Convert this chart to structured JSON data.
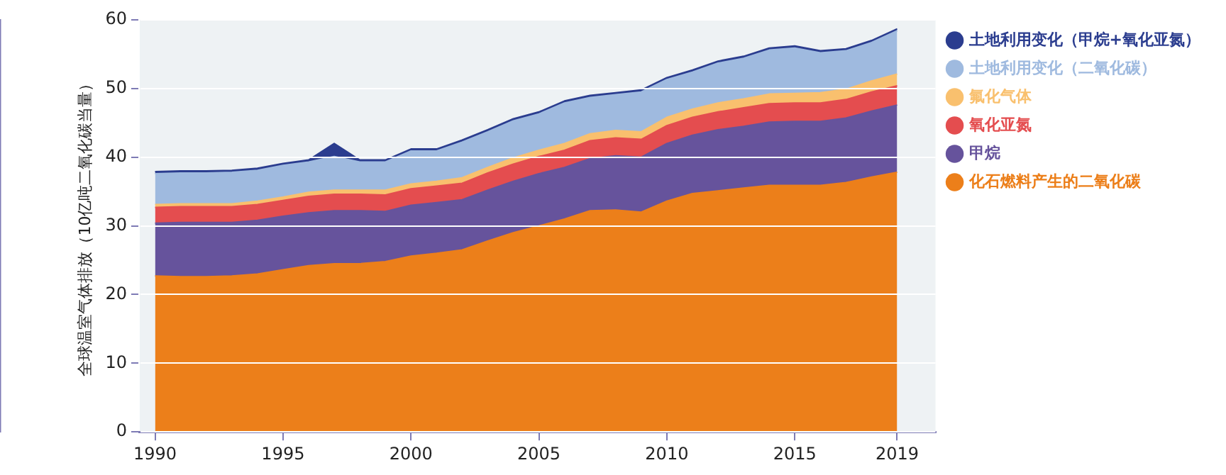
{
  "chart_data": {
    "type": "area",
    "ylabel": "全球温室气体排放（10亿吨二氧化碳当量）",
    "stacked": true,
    "grid": "y",
    "legend": "right",
    "marker": "none",
    "x": [
      1990,
      1991,
      1992,
      1993,
      1994,
      1995,
      1996,
      1997,
      1998,
      1999,
      2000,
      2001,
      2002,
      2003,
      2004,
      2005,
      2006,
      2007,
      2008,
      2009,
      2010,
      2011,
      2012,
      2013,
      2014,
      2015,
      2016,
      2017,
      2018,
      2019
    ],
    "xlim": [
      1989.4,
      2020.5
    ],
    "xticks": [
      1990,
      1995,
      2000,
      2005,
      2010,
      2015,
      2019
    ],
    "ylim": [
      0,
      60
    ],
    "yticks": [
      0,
      10,
      20,
      30,
      40,
      50,
      60
    ],
    "series": [
      {
        "name": "化石燃料产生的二氧化碳",
        "color": "#ec7f1a",
        "values": [
          22.7,
          22.6,
          22.6,
          22.7,
          23.0,
          23.6,
          24.2,
          24.5,
          24.5,
          24.8,
          25.6,
          26.0,
          26.5,
          27.8,
          29.0,
          30.0,
          31.0,
          32.2,
          32.3,
          32.0,
          33.6,
          34.7,
          35.1,
          35.5,
          35.9,
          35.9,
          35.9,
          36.3,
          37.1,
          37.8
        ]
      },
      {
        "name": "甲烷",
        "color": "#66539c",
        "values": [
          7.7,
          7.9,
          7.9,
          7.8,
          7.8,
          7.8,
          7.7,
          7.7,
          7.7,
          7.3,
          7.4,
          7.4,
          7.3,
          7.4,
          7.5,
          7.6,
          7.5,
          7.6,
          7.9,
          8.0,
          8.4,
          8.5,
          8.9,
          9.0,
          9.2,
          9.3,
          9.3,
          9.4,
          9.6,
          9.8
        ]
      },
      {
        "name": "氧化亚氮",
        "color": "#e44d4f",
        "values": [
          2.3,
          2.3,
          2.3,
          2.3,
          2.3,
          2.3,
          2.4,
          2.4,
          2.4,
          2.4,
          2.4,
          2.4,
          2.4,
          2.5,
          2.5,
          2.5,
          2.5,
          2.6,
          2.6,
          2.6,
          2.6,
          2.6,
          2.6,
          2.7,
          2.7,
          2.7,
          2.7,
          2.7,
          2.8,
          2.8
        ]
      },
      {
        "name": "氟化气体",
        "color": "#f9c06e",
        "values": [
          0.4,
          0.4,
          0.4,
          0.4,
          0.5,
          0.5,
          0.6,
          0.6,
          0.6,
          0.7,
          0.7,
          0.7,
          0.8,
          0.8,
          0.9,
          0.9,
          1.0,
          1.0,
          1.1,
          1.1,
          1.2,
          1.2,
          1.3,
          1.3,
          1.4,
          1.4,
          1.5,
          1.5,
          1.6,
          1.7
        ]
      },
      {
        "name": "土地利用变化（二氧化碳）",
        "color": "#9fbadf",
        "values": [
          4.5,
          4.5,
          4.5,
          4.6,
          4.5,
          4.6,
          4.4,
          4.9,
          4.1,
          4.1,
          4.8,
          4.4,
          5.2,
          5.2,
          5.4,
          5.3,
          5.9,
          5.3,
          5.2,
          5.8,
          5.5,
          5.4,
          5.8,
          5.9,
          6.4,
          6.6,
          5.8,
          5.6,
          5.6,
          6.3
        ]
      },
      {
        "name": "土地利用变化（甲烷+氧化亚氮）",
        "color": "#2b3d8f",
        "values": [
          0.3,
          0.3,
          0.3,
          0.3,
          0.3,
          0.3,
          0.3,
          1.9,
          0.3,
          0.3,
          0.3,
          0.3,
          0.3,
          0.3,
          0.3,
          0.3,
          0.3,
          0.3,
          0.3,
          0.3,
          0.3,
          0.3,
          0.3,
          0.3,
          0.3,
          0.3,
          0.3,
          0.3,
          0.3,
          0.3
        ]
      }
    ]
  }
}
